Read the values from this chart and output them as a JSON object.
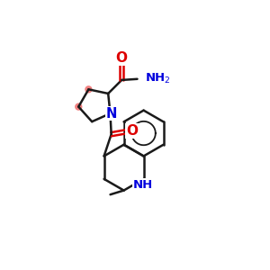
{
  "bg_color": "#ffffff",
  "bond_color": "#1a1a1a",
  "N_color": "#0000dd",
  "O_color": "#dd0000",
  "highlight_color": "#f08080",
  "bond_lw": 1.8,
  "highlight_r": 0.18,
  "xlim": [
    0,
    10
  ],
  "ylim": [
    0,
    10
  ]
}
